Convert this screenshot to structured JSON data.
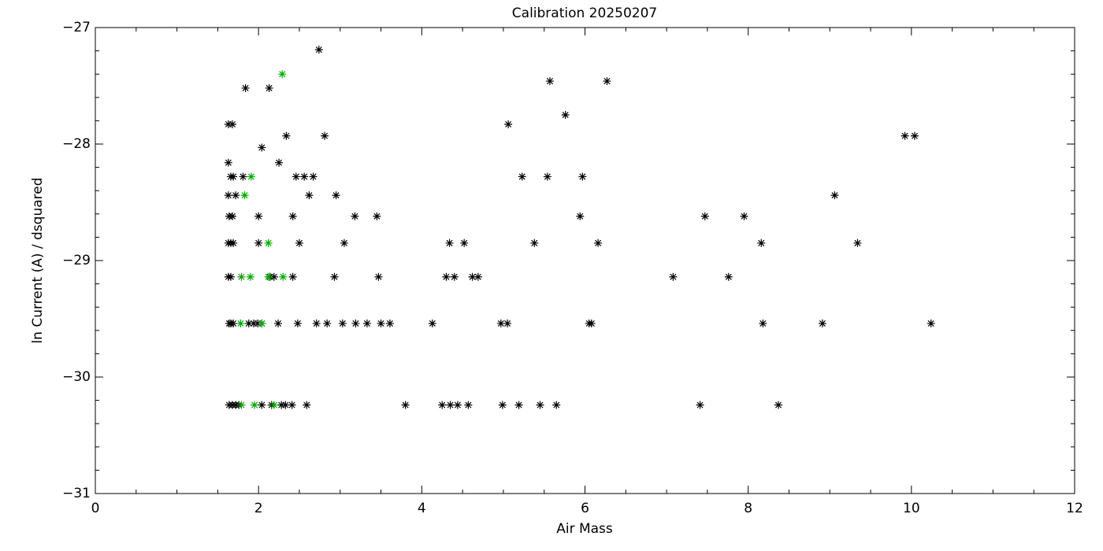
{
  "chart_data": {
    "type": "scatter",
    "title": "Calibration 20250207",
    "x_label": "Air Mass",
    "y_label": "ln Current (A) / dsquared",
    "xlim": [
      0,
      12
    ],
    "xticks": [
      0,
      2,
      4,
      6,
      8,
      10,
      12
    ],
    "xminorticks": [
      0.5,
      1,
      1.5,
      2.5,
      3,
      3.5,
      4.5,
      5,
      5.5,
      6.5,
      7,
      7.5,
      8.5,
      9,
      9.5,
      10.5,
      11,
      11.5
    ],
    "ylim": [
      -31,
      -27
    ],
    "yticks": [
      {
        "value": -27,
        "label": "−27"
      },
      {
        "value": -28,
        "label": "−28"
      },
      {
        "value": -29,
        "label": "−29"
      },
      {
        "value": -30,
        "label": "−30"
      },
      {
        "value": -31,
        "label": "−31"
      }
    ],
    "yminorticks": [
      -27.2,
      -27.4,
      -27.6,
      -27.8,
      -28.2,
      -28.4,
      -28.6,
      -28.8,
      -29.2,
      -29.4,
      -29.6,
      -29.8,
      -30.2,
      -30.4,
      -30.6,
      -30.8
    ],
    "series": [
      {
        "color": "#000000",
        "x": [
          1.64,
          1.68,
          1.72,
          1.76,
          2.04,
          2.16,
          2.28,
          2.33,
          2.41,
          2.59,
          3.8,
          4.25,
          4.35,
          4.44,
          4.57,
          4.99,
          5.19,
          5.45,
          5.65,
          7.41,
          8.37,
          1.64,
          1.66,
          1.69,
          1.88,
          1.94,
          1.99,
          2.04,
          2.24,
          2.48,
          2.71,
          2.84,
          3.03,
          3.19,
          3.33,
          3.5,
          3.61,
          4.13,
          4.97,
          5.05,
          6.05,
          6.08,
          8.18,
          8.91,
          10.24,
          1.63,
          1.66,
          2.14,
          2.19,
          2.42,
          2.93,
          3.47,
          4.3,
          4.4,
          4.62,
          4.69,
          7.08,
          7.76,
          1.63,
          1.66,
          1.69,
          2.0,
          2.5,
          3.05,
          4.34,
          4.52,
          5.38,
          6.16,
          8.16,
          9.34,
          1.64,
          1.68,
          2.0,
          2.42,
          3.18,
          3.45,
          5.94,
          7.47,
          7.95,
          1.63,
          1.72,
          2.62,
          2.95,
          9.06,
          1.66,
          1.69,
          1.81,
          2.46,
          2.56,
          2.67,
          5.23,
          5.54,
          5.97,
          1.63,
          2.25,
          2.04,
          2.34,
          2.81,
          9.92,
          10.04,
          1.63,
          1.68,
          5.06,
          5.76,
          1.84,
          2.13,
          5.57,
          6.27,
          2.74
        ],
        "values": [
          -30.24,
          -30.24,
          -30.24,
          -30.24,
          -30.24,
          -30.24,
          -30.24,
          -30.24,
          -30.24,
          -30.24,
          -30.24,
          -30.24,
          -30.24,
          -30.24,
          -30.24,
          -30.24,
          -30.24,
          -30.24,
          -30.24,
          -30.24,
          -30.24,
          -29.54,
          -29.54,
          -29.54,
          -29.54,
          -29.54,
          -29.54,
          -29.54,
          -29.54,
          -29.54,
          -29.54,
          -29.54,
          -29.54,
          -29.54,
          -29.54,
          -29.54,
          -29.54,
          -29.54,
          -29.54,
          -29.54,
          -29.54,
          -29.54,
          -29.54,
          -29.54,
          -29.54,
          -29.14,
          -29.14,
          -29.14,
          -29.14,
          -29.14,
          -29.14,
          -29.14,
          -29.14,
          -29.14,
          -29.14,
          -29.14,
          -29.14,
          -29.14,
          -28.85,
          -28.85,
          -28.85,
          -28.85,
          -28.85,
          -28.85,
          -28.85,
          -28.85,
          -28.85,
          -28.85,
          -28.85,
          -28.85,
          -28.62,
          -28.62,
          -28.62,
          -28.62,
          -28.62,
          -28.62,
          -28.62,
          -28.62,
          -28.62,
          -28.44,
          -28.44,
          -28.44,
          -28.44,
          -28.44,
          -28.28,
          -28.28,
          -28.28,
          -28.28,
          -28.28,
          -28.28,
          -28.28,
          -28.28,
          -28.28,
          -28.16,
          -28.16,
          -28.03,
          -27.93,
          -27.93,
          -27.93,
          -27.93,
          -27.83,
          -27.83,
          -27.83,
          -27.75,
          -27.52,
          -27.52,
          -27.46,
          -27.46,
          -27.19
        ]
      },
      {
        "color": "#00aa00",
        "x": [
          1.79,
          1.95,
          2.19,
          1.78,
          2.04,
          1.79,
          1.9,
          2.12,
          2.3,
          2.12,
          1.83,
          1.91,
          2.29
        ],
        "values": [
          -30.24,
          -30.24,
          -30.24,
          -29.54,
          -29.54,
          -29.14,
          -29.14,
          -29.14,
          -29.14,
          -28.85,
          -28.44,
          -28.28,
          -27.4
        ]
      }
    ]
  }
}
